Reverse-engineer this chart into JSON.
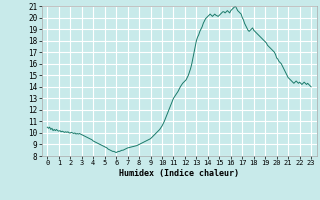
{
  "title": "",
  "xlabel": "Humidex (Indice chaleur)",
  "ylabel": "",
  "bg_color": "#c8eaea",
  "grid_color": "#ffffff",
  "line_color": "#1a7a6a",
  "ylim": [
    8,
    21
  ],
  "xlim": [
    -0.5,
    23.5
  ],
  "yticks": [
    8,
    9,
    10,
    11,
    12,
    13,
    14,
    15,
    16,
    17,
    18,
    19,
    20,
    21
  ],
  "xticks": [
    0,
    1,
    2,
    3,
    4,
    5,
    6,
    7,
    8,
    9,
    10,
    11,
    12,
    13,
    14,
    15,
    16,
    17,
    18,
    19,
    20,
    21,
    22,
    23
  ],
  "x": [
    0,
    0.1,
    0.2,
    0.3,
    0.4,
    0.5,
    0.6,
    0.7,
    0.8,
    0.9,
    1.0,
    1.1,
    1.2,
    1.3,
    1.4,
    1.5,
    1.6,
    1.7,
    1.8,
    1.9,
    2.0,
    2.1,
    2.2,
    2.3,
    2.4,
    2.5,
    2.6,
    2.7,
    2.8,
    2.9,
    3.0,
    3.1,
    3.2,
    3.3,
    3.5,
    3.7,
    3.9,
    4.0,
    4.2,
    4.4,
    4.6,
    4.8,
    5.0,
    5.1,
    5.2,
    5.3,
    5.4,
    5.5,
    5.6,
    5.7,
    5.8,
    5.9,
    6.0,
    6.1,
    6.2,
    6.3,
    6.4,
    6.5,
    6.6,
    6.7,
    6.8,
    6.9,
    7.0,
    7.2,
    7.4,
    7.6,
    7.8,
    8.0,
    8.2,
    8.4,
    8.6,
    8.8,
    9.0,
    9.2,
    9.4,
    9.6,
    9.8,
    10.0,
    10.2,
    10.4,
    10.6,
    10.8,
    11.0,
    11.2,
    11.4,
    11.6,
    11.8,
    12.0,
    12.1,
    12.2,
    12.3,
    12.4,
    12.5,
    12.6,
    12.7,
    12.8,
    12.9,
    13.0,
    13.1,
    13.2,
    13.3,
    13.4,
    13.5,
    13.6,
    13.7,
    13.8,
    13.9,
    14.0,
    14.1,
    14.2,
    14.3,
    14.4,
    14.5,
    14.6,
    14.7,
    14.8,
    14.9,
    15.0,
    15.1,
    15.2,
    15.3,
    15.4,
    15.5,
    15.6,
    15.7,
    15.8,
    15.9,
    16.0,
    16.1,
    16.2,
    16.3,
    16.4,
    16.5,
    16.6,
    16.7,
    16.8,
    16.9,
    17.0,
    17.1,
    17.2,
    17.3,
    17.4,
    17.5,
    17.6,
    17.7,
    17.8,
    17.9,
    18.0,
    18.1,
    18.2,
    18.3,
    18.4,
    18.5,
    18.6,
    18.7,
    18.8,
    18.9,
    19.0,
    19.1,
    19.2,
    19.3,
    19.4,
    19.5,
    19.6,
    19.7,
    19.8,
    19.9,
    20.0,
    20.1,
    20.2,
    20.3,
    20.4,
    20.5,
    20.6,
    20.7,
    20.8,
    20.9,
    21.0,
    21.1,
    21.2,
    21.3,
    21.4,
    21.5,
    21.6,
    21.7,
    21.8,
    21.9,
    22.0,
    22.1,
    22.2,
    22.3,
    22.4,
    22.5,
    22.6,
    22.7,
    22.8,
    22.9,
    23.0
  ],
  "y": [
    10.5,
    10.4,
    10.5,
    10.3,
    10.4,
    10.2,
    10.3,
    10.2,
    10.3,
    10.2,
    10.15,
    10.2,
    10.1,
    10.15,
    10.1,
    10.05,
    10.1,
    10.05,
    10.1,
    10.0,
    10.0,
    10.05,
    10.0,
    9.95,
    10.0,
    9.9,
    9.95,
    9.9,
    9.95,
    9.9,
    9.85,
    9.8,
    9.75,
    9.7,
    9.6,
    9.5,
    9.4,
    9.3,
    9.2,
    9.1,
    9.0,
    8.9,
    8.8,
    8.75,
    8.7,
    8.6,
    8.55,
    8.5,
    8.45,
    8.4,
    8.4,
    8.35,
    8.3,
    8.35,
    8.4,
    8.4,
    8.45,
    8.5,
    8.5,
    8.55,
    8.6,
    8.65,
    8.7,
    8.75,
    8.8,
    8.85,
    8.9,
    9.0,
    9.1,
    9.2,
    9.3,
    9.4,
    9.5,
    9.7,
    9.9,
    10.1,
    10.3,
    10.6,
    11.0,
    11.5,
    12.0,
    12.5,
    13.0,
    13.3,
    13.6,
    14.0,
    14.3,
    14.5,
    14.6,
    14.8,
    15.0,
    15.3,
    15.6,
    16.0,
    16.5,
    17.0,
    17.5,
    18.0,
    18.3,
    18.5,
    18.8,
    19.0,
    19.2,
    19.5,
    19.7,
    19.9,
    20.0,
    20.1,
    20.2,
    20.3,
    20.2,
    20.1,
    20.2,
    20.3,
    20.2,
    20.15,
    20.1,
    20.2,
    20.3,
    20.4,
    20.5,
    20.5,
    20.4,
    20.5,
    20.6,
    20.5,
    20.4,
    20.6,
    20.7,
    20.8,
    20.9,
    21.0,
    20.8,
    20.6,
    20.5,
    20.4,
    20.3,
    20.0,
    19.8,
    19.5,
    19.3,
    19.1,
    18.9,
    18.8,
    18.9,
    19.0,
    19.1,
    18.9,
    18.8,
    18.7,
    18.6,
    18.5,
    18.4,
    18.3,
    18.2,
    18.1,
    18.0,
    17.9,
    17.8,
    17.6,
    17.5,
    17.4,
    17.3,
    17.2,
    17.1,
    17.0,
    16.8,
    16.5,
    16.4,
    16.2,
    16.1,
    16.0,
    15.8,
    15.6,
    15.4,
    15.2,
    15.0,
    14.8,
    14.7,
    14.6,
    14.5,
    14.4,
    14.3,
    14.4,
    14.5,
    14.4,
    14.3,
    14.4,
    14.3,
    14.2,
    14.3,
    14.4,
    14.3,
    14.2,
    14.3,
    14.2,
    14.1,
    14.0
  ]
}
